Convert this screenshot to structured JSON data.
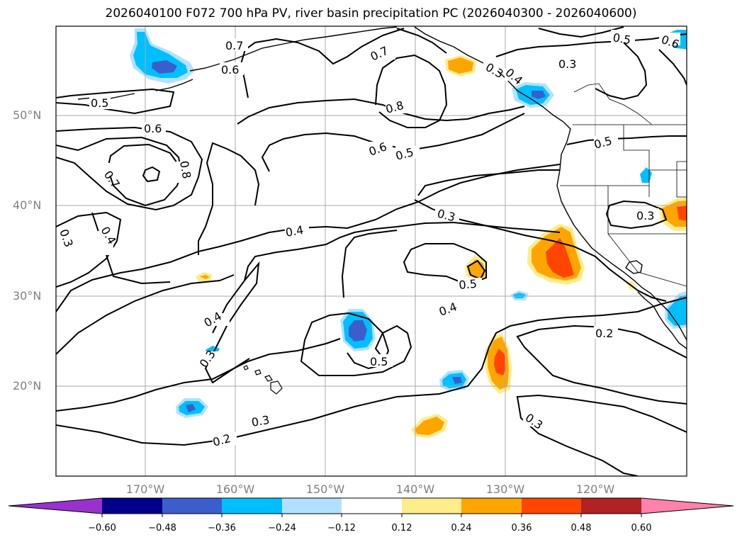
{
  "title": "2026040100 F072 700 hPa PV, river basin precipitation PC (2026040300 - 2026040600)",
  "axes": {
    "lat_labels": [
      "50°N",
      "40°N",
      "30°N",
      "20°N"
    ],
    "lon_labels": [
      "170°W",
      "160°W",
      "150°W",
      "140°W",
      "130°W",
      "120°W"
    ]
  },
  "contour_labels": [
    "0.5",
    "0.6",
    "0.7",
    "0.8",
    "0.6",
    "0.5",
    "0.7",
    "0.8",
    "0.4",
    "0.3",
    "0.3",
    "0.4",
    "0.5",
    "0.5",
    "0.4",
    "0.4",
    "0.3",
    "0.3",
    "0.3",
    "0.2",
    "0.2",
    "0.3",
    "0.5",
    "0.3",
    "0.7",
    "0.6",
    "0.5",
    "0.6",
    "0.3",
    "0.4"
  ],
  "colorbar": {
    "ticks": [
      "−0.60",
      "−0.48",
      "−0.36",
      "−0.24",
      "−0.12",
      "0.12",
      "0.24",
      "0.36",
      "0.48",
      "0.60"
    ],
    "colors": [
      "#9932cc",
      "#00008b",
      "#3a5fcd",
      "#00bfff",
      "#b0e2ff",
      "#ffffff",
      "#ffec8b",
      "#ffa500",
      "#ff4500",
      "#b22222",
      "#ff82ab"
    ]
  },
  "chart_data": {
    "type": "contour-map",
    "title": "2026040100 F072 700 hPa PV, river basin precipitation PC (2026040300 - 2026040600)",
    "lon_range": [
      -180,
      -110
    ],
    "lat_range": [
      10,
      60
    ],
    "contour_variable": "700 hPa PV",
    "contour_levels": [
      0.2,
      0.3,
      0.4,
      0.5,
      0.6,
      0.7,
      0.8
    ],
    "shaded_variable": "river basin precipitation PC",
    "shade_levels": [
      -0.6,
      -0.48,
      -0.36,
      -0.24,
      -0.12,
      0.12,
      0.24,
      0.36,
      0.48,
      0.6
    ]
  }
}
